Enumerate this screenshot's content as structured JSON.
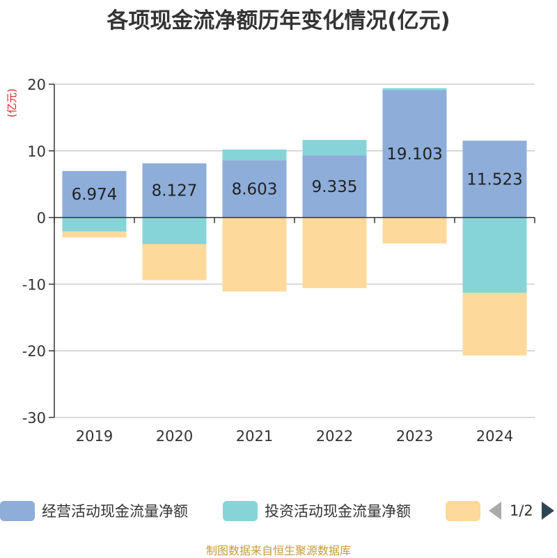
{
  "title": "各项现金流净额历年变化情况(亿元)",
  "chart_data": {
    "type": "bar",
    "stacked": true,
    "categories": [
      "2019",
      "2020",
      "2021",
      "2022",
      "2023",
      "2024"
    ],
    "ylabel": "(亿元)",
    "ylim": [
      -30,
      20
    ],
    "yticks": [
      20,
      10,
      0,
      -10,
      -20,
      -30
    ],
    "grid": true,
    "series": [
      {
        "name": "经营活动现金流量净额",
        "color": "#8eadd9",
        "values": [
          6.974,
          8.127,
          8.603,
          9.335,
          19.103,
          11.523
        ],
        "show_labels": true
      },
      {
        "name": "投资活动现金流量净额",
        "color": "#86d4d8",
        "values": [
          -2.1,
          -4.0,
          1.6,
          2.3,
          0.3,
          -11.3
        ],
        "show_labels": false
      },
      {
        "name": "",
        "color": "#fed99c",
        "values": [
          -0.9,
          -5.4,
          -11.1,
          -10.6,
          -3.9,
          -9.4
        ],
        "show_labels": false
      }
    ],
    "legend_position": "bottom"
  },
  "legend": {
    "items": [
      {
        "label": "经营活动现金流量净额",
        "color": "#8eadd9"
      },
      {
        "label": "投资活动现金流量净额",
        "color": "#86d4d8"
      },
      {
        "label": "",
        "color": "#fed99c"
      }
    ],
    "page": "1/2"
  },
  "source": "制图数据来自恒生聚源数据库"
}
